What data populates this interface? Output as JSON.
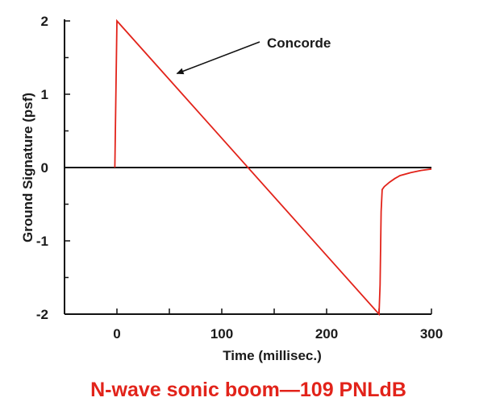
{
  "chart_data": {
    "type": "line",
    "title": "",
    "xlabel": "Time (millisec.)",
    "ylabel": "Ground Signature (psf)",
    "xlim": [
      -50,
      300
    ],
    "ylim": [
      -2,
      2
    ],
    "x_ticks": [
      0,
      100,
      200,
      300
    ],
    "x_tick_labels": [
      "0",
      "100",
      "200",
      "300"
    ],
    "y_ticks": [
      2,
      1,
      0,
      -1,
      -2
    ],
    "y_tick_labels": [
      "2",
      "1",
      "0",
      "-1",
      "-2"
    ],
    "grid": false,
    "series": [
      {
        "name": "Concorde",
        "color": "#e2231a",
        "x": [
          -2,
          0,
          250,
          251,
          252,
          253,
          255,
          260,
          265,
          270,
          280,
          290,
          300
        ],
        "y": [
          0,
          2,
          -2,
          -1.6,
          -0.6,
          -0.3,
          -0.26,
          -0.2,
          -0.15,
          -0.11,
          -0.07,
          -0.04,
          -0.02
        ]
      }
    ],
    "zero_line": {
      "y": 0,
      "color": "#111111"
    },
    "annotations": [
      {
        "text": "Concorde",
        "target_x": 55,
        "target_y": 1.25
      }
    ],
    "caption": "N-wave sonic boom—109 PNLdB"
  }
}
